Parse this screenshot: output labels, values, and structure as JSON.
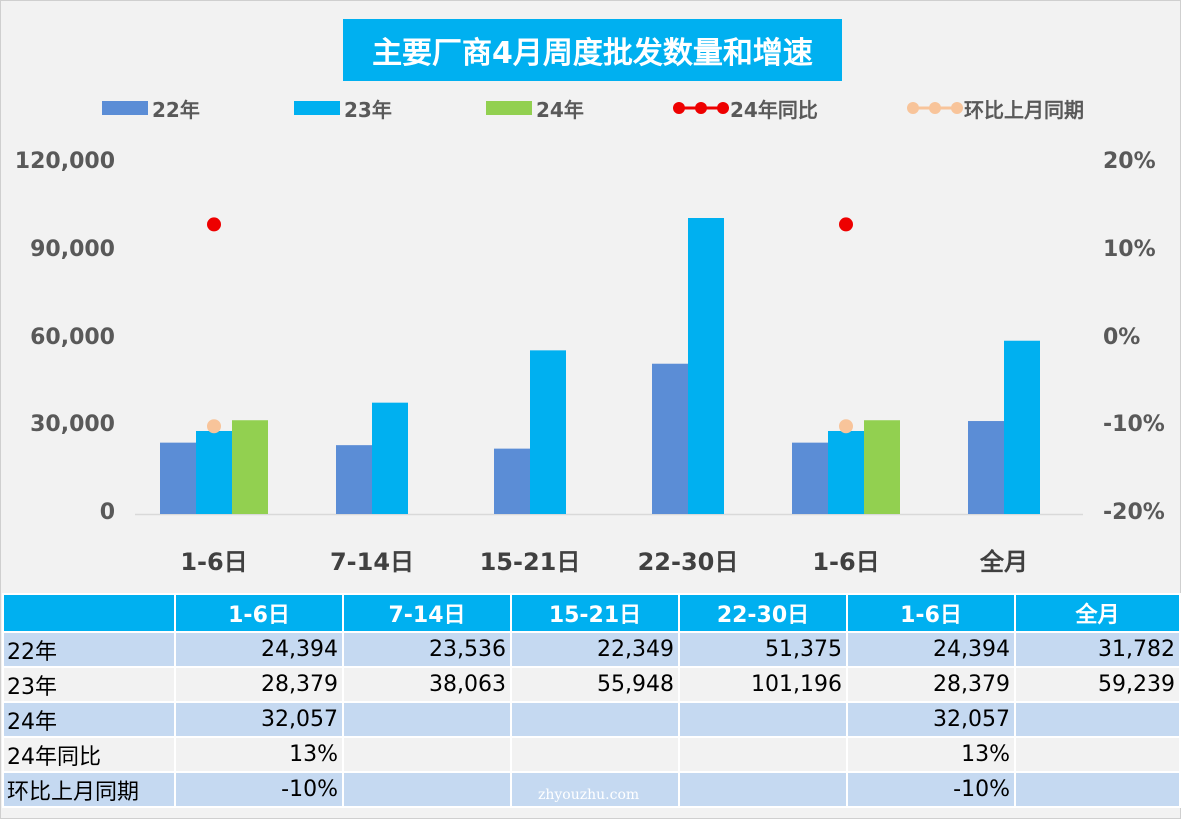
{
  "chart_data": {
    "type": "bar",
    "title": "主要厂商4月周度批发数量和增速",
    "categories": [
      "1-6日",
      "7-14日",
      "15-21日",
      "22-30日",
      "1-6日",
      "全月"
    ],
    "series": [
      {
        "name": "22年",
        "kind": "bar",
        "color": "#5b8dd6",
        "values": [
          24394,
          23536,
          22349,
          51375,
          24394,
          31782
        ]
      },
      {
        "name": "23年",
        "kind": "bar",
        "color": "#00b0f0",
        "values": [
          28379,
          38063,
          55948,
          101196,
          28379,
          59239
        ]
      },
      {
        "name": "24年",
        "kind": "bar",
        "color": "#92d050",
        "values": [
          32057,
          null,
          null,
          null,
          32057,
          null
        ]
      },
      {
        "name": "24年同比",
        "kind": "line-marker",
        "axis": "right",
        "color": "#ee0000",
        "values": [
          0.13,
          null,
          null,
          null,
          0.13,
          null
        ]
      },
      {
        "name": "环比上月同期",
        "kind": "line-marker",
        "axis": "right",
        "color": "#f8c49a",
        "values": [
          -0.1,
          null,
          null,
          null,
          -0.1,
          null
        ]
      }
    ],
    "y_left": {
      "min": 0,
      "max": 120000,
      "ticks": [
        "0",
        "30,000",
        "60,000",
        "90,000",
        "120,000"
      ],
      "tick_values": [
        0,
        30000,
        60000,
        90000,
        120000
      ]
    },
    "y_right": {
      "min": -0.2,
      "max": 0.2,
      "ticks": [
        "-20%",
        "-10%",
        "0%",
        "10%",
        "20%"
      ],
      "tick_values": [
        -0.2,
        -0.1,
        0,
        0.1,
        0.2
      ]
    },
    "grid": false,
    "legend_position": "top"
  },
  "table": {
    "header": [
      "",
      "1-6日",
      "7-14日",
      "15-21日",
      "22-30日",
      "1-6日",
      "全月"
    ],
    "rows": [
      {
        "label": "22年",
        "cells": [
          "24,394",
          "23,536",
          "22,349",
          "51,375",
          "24,394",
          "31,782"
        ]
      },
      {
        "label": "23年",
        "cells": [
          "28,379",
          "38,063",
          "55,948",
          "101,196",
          "28,379",
          "59,239"
        ]
      },
      {
        "label": "24年",
        "cells": [
          "32,057",
          "",
          "",
          "",
          "32,057",
          ""
        ]
      },
      {
        "label": "24年同比",
        "cells": [
          "13%",
          "",
          "",
          "",
          "13%",
          ""
        ]
      },
      {
        "label": "环比上月同期",
        "cells": [
          "-10%",
          "",
          "",
          "",
          "-10%",
          ""
        ]
      }
    ]
  },
  "watermark": "zhyouzhu.com"
}
